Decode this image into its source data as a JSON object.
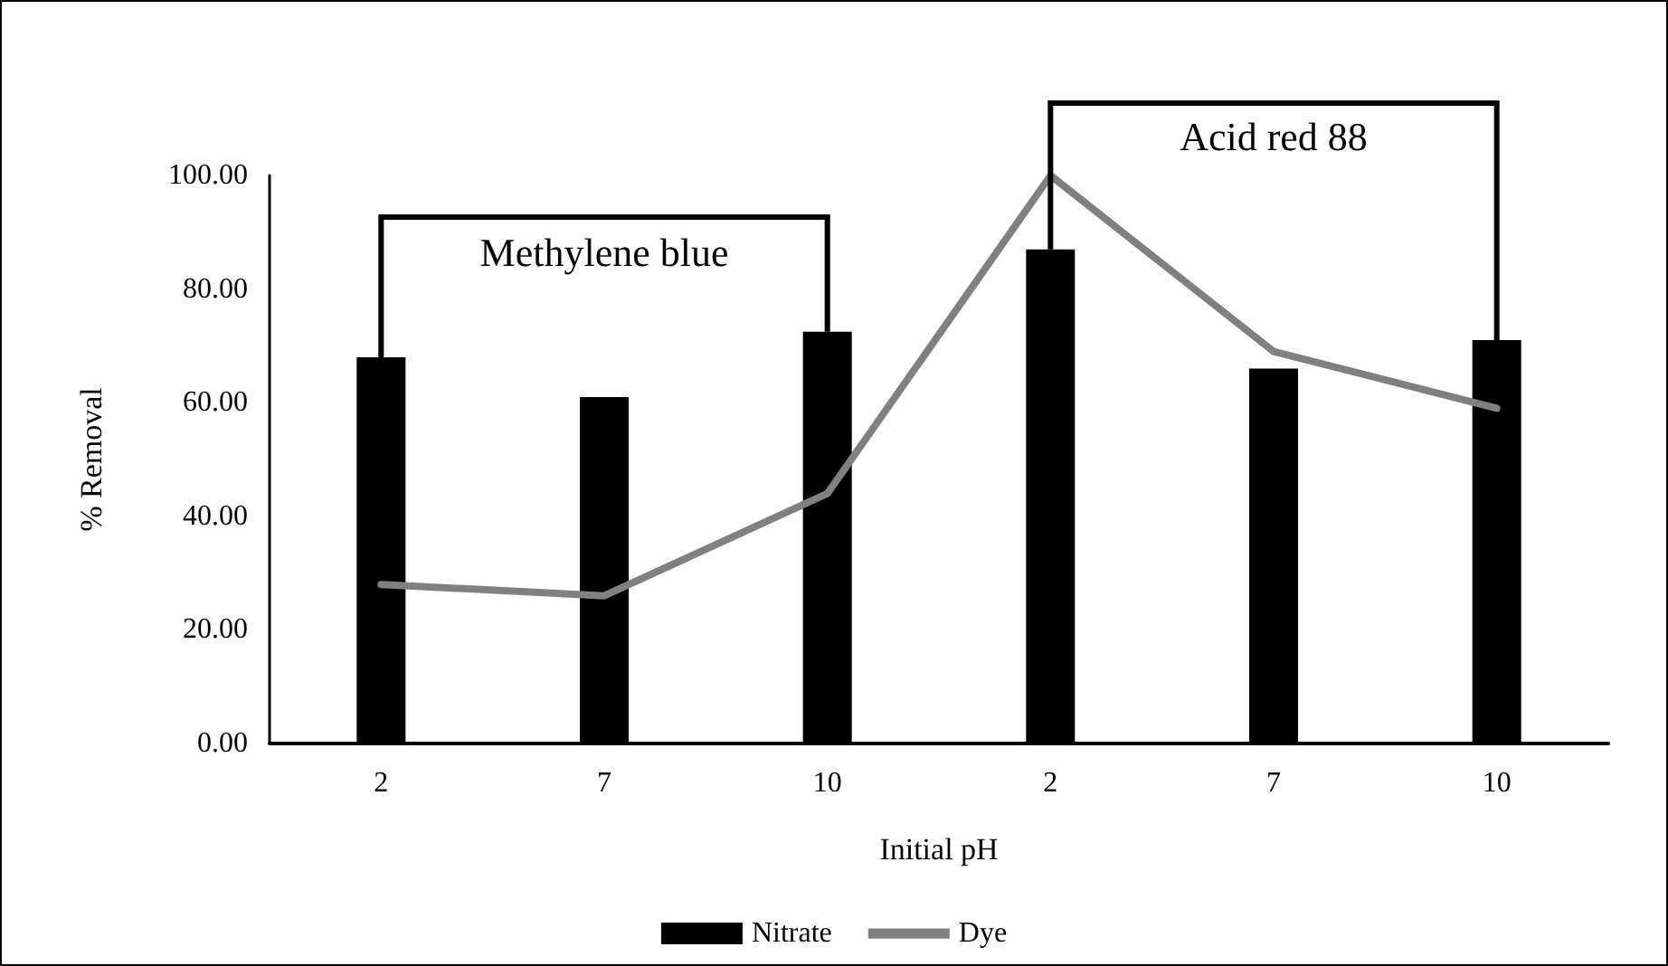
{
  "chart_data": {
    "type": "bar",
    "xlabel": "Initial pH",
    "ylabel": "% Removal",
    "categories": [
      "2",
      "7",
      "10",
      "2",
      "7",
      "10"
    ],
    "series": [
      {
        "name": "Nitrate",
        "color": "#000000",
        "values": [
          68,
          61,
          72.5,
          87,
          66,
          71
        ]
      },
      {
        "name": "Dye",
        "type": "line",
        "color": "#808080",
        "values": [
          28,
          26,
          44,
          100,
          69,
          59
        ]
      }
    ],
    "ylim": [
      0,
      100
    ],
    "yticks": [
      {
        "value": 0,
        "label": "0.00"
      },
      {
        "value": 20,
        "label": "20.00"
      },
      {
        "value": 40,
        "label": "40.00"
      },
      {
        "value": 60,
        "label": "60.00"
      },
      {
        "value": 80,
        "label": "80.00"
      },
      {
        "value": 100,
        "label": "100.00"
      }
    ],
    "annotations": [
      "Methylene blue",
      "Acid red 88"
    ],
    "grid": false,
    "legend": "bottom",
    "marker": "none",
    "line_style": "solid"
  }
}
